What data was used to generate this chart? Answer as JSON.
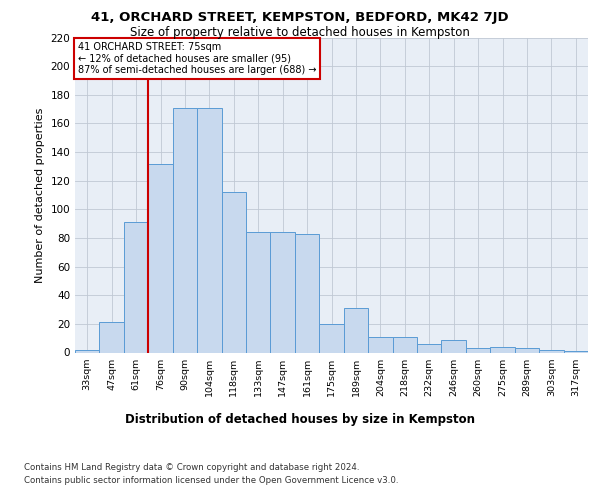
{
  "title_line1": "41, ORCHARD STREET, KEMPSTON, BEDFORD, MK42 7JD",
  "title_line2": "Size of property relative to detached houses in Kempston",
  "xlabel": "Distribution of detached houses by size in Kempston",
  "ylabel": "Number of detached properties",
  "categories": [
    "33sqm",
    "47sqm",
    "61sqm",
    "76sqm",
    "90sqm",
    "104sqm",
    "118sqm",
    "133sqm",
    "147sqm",
    "161sqm",
    "175sqm",
    "189sqm",
    "204sqm",
    "218sqm",
    "232sqm",
    "246sqm",
    "260sqm",
    "275sqm",
    "289sqm",
    "303sqm",
    "317sqm"
  ],
  "values": [
    2,
    21,
    91,
    132,
    171,
    171,
    112,
    84,
    84,
    83,
    20,
    31,
    11,
    11,
    6,
    9,
    3,
    4,
    3,
    2,
    1
  ],
  "bar_color": "#c8d9ee",
  "bar_edge_color": "#5a9bd5",
  "vline_color": "#cc0000",
  "vline_xidx": 2.5,
  "annotation_text": "41 ORCHARD STREET: 75sqm\n← 12% of detached houses are smaller (95)\n87% of semi-detached houses are larger (688) →",
  "annotation_box_edgecolor": "#cc0000",
  "footnote_line1": "Contains HM Land Registry data © Crown copyright and database right 2024.",
  "footnote_line2": "Contains public sector information licensed under the Open Government Licence v3.0.",
  "ylim": [
    0,
    220
  ],
  "yticks": [
    0,
    20,
    40,
    60,
    80,
    100,
    120,
    140,
    160,
    180,
    200,
    220
  ],
  "plot_bg_color": "#e8eef6",
  "fig_bg_color": "#ffffff",
  "grid_color": "#c0c8d4"
}
